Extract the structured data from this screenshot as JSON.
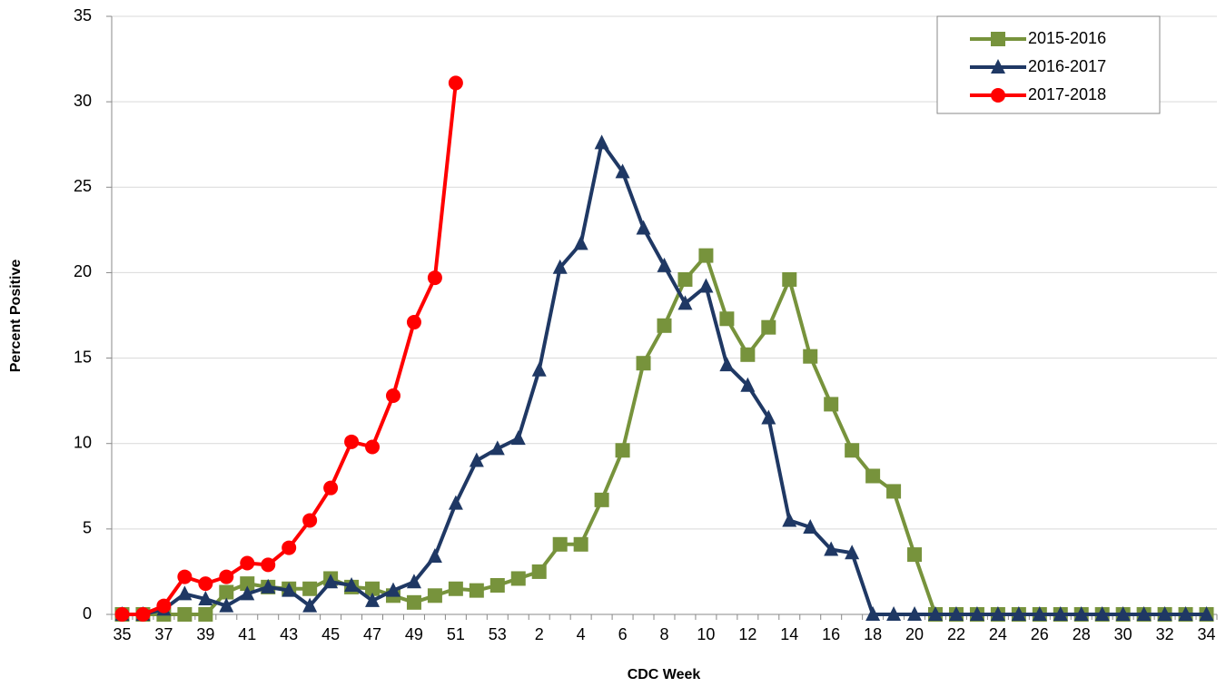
{
  "chart_data": {
    "type": "line",
    "y_label": "Percent Positive",
    "x_label": "CDC Week",
    "categories": [
      "35",
      null,
      "37",
      null,
      "39",
      null,
      "41",
      null,
      "43",
      null,
      "45",
      null,
      "47",
      null,
      "49",
      null,
      "51",
      null,
      "53",
      null,
      "2",
      null,
      "4",
      null,
      "6",
      null,
      "8",
      null,
      "10",
      null,
      "12",
      null,
      "14",
      null,
      "16",
      null,
      "18",
      null,
      "20",
      null,
      "22",
      null,
      "24",
      null,
      "26",
      null,
      "28",
      null,
      "30",
      null,
      "32",
      null,
      "34"
    ],
    "series": [
      {
        "name": "2015-2016",
        "color": "#77933c",
        "marker": "square",
        "values": [
          0,
          0,
          0,
          0,
          0,
          1.3,
          1.8,
          1.6,
          1.5,
          1.5,
          2.1,
          1.6,
          1.5,
          1.1,
          0.7,
          1.1,
          1.5,
          1.4,
          1.7,
          2.1,
          2.5,
          4.1,
          4.1,
          6.7,
          9.6,
          14.7,
          16.9,
          19.6,
          21.0,
          17.3,
          15.2,
          16.8,
          19.6,
          15.1,
          12.3,
          9.6,
          8.1,
          7.2,
          3.5,
          0,
          0,
          0,
          0,
          0,
          0,
          0,
          0,
          0,
          0,
          0,
          0,
          0,
          0
        ]
      },
      {
        "name": "2016-2017",
        "color": "#1f3864",
        "marker": "triangle",
        "values": [
          0,
          0,
          0.3,
          1.2,
          0.9,
          0.5,
          1.2,
          1.6,
          1.4,
          0.5,
          1.9,
          1.7,
          0.8,
          1.4,
          1.9,
          3.4,
          6.5,
          9.0,
          9.7,
          10.3,
          14.3,
          20.3,
          21.7,
          27.6,
          25.9,
          22.6,
          20.4,
          18.2,
          19.2,
          14.6,
          13.4,
          11.5,
          5.5,
          5.1,
          3.8,
          3.6,
          0,
          0,
          0,
          0,
          0,
          0,
          0,
          0,
          0,
          0,
          0,
          0,
          0,
          0,
          0,
          0,
          0
        ]
      },
      {
        "name": "2017-2018",
        "color": "#ff0000",
        "marker": "circle",
        "values": [
          0,
          0,
          0.5,
          2.2,
          1.8,
          2.2,
          3.0,
          2.9,
          3.9,
          5.5,
          7.4,
          10.1,
          9.8,
          12.8,
          17.1,
          19.7,
          31.1,
          null,
          null,
          null,
          null,
          null,
          null,
          null,
          null,
          null,
          null,
          null,
          null,
          null,
          null,
          null,
          null,
          null,
          null,
          null,
          null,
          null,
          null,
          null,
          null,
          null,
          null,
          null,
          null,
          null,
          null,
          null,
          null,
          null,
          null,
          null,
          null
        ]
      }
    ],
    "ylim": [
      0,
      35
    ],
    "yticks": [
      0,
      5,
      10,
      15,
      20,
      25,
      30,
      35
    ],
    "grid": true,
    "legend": "top-right"
  }
}
